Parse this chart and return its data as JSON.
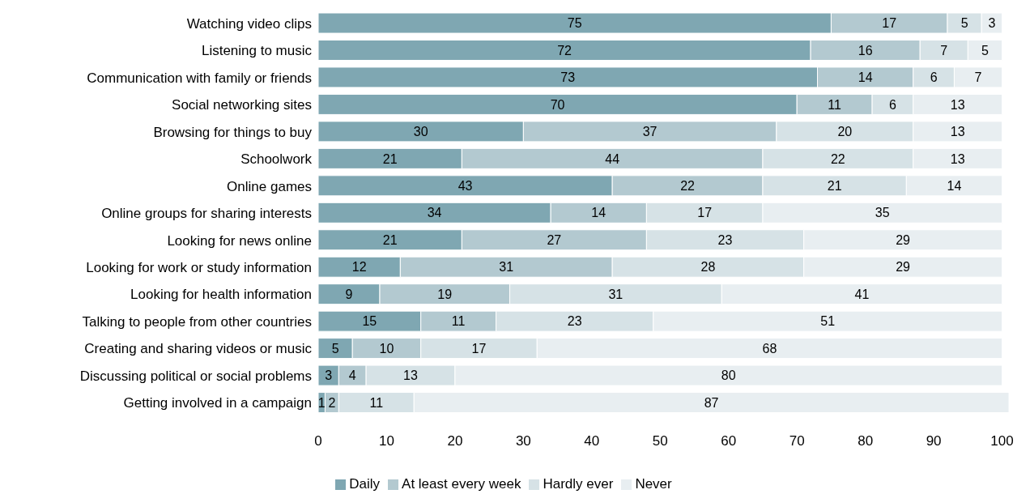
{
  "chart_data": {
    "type": "bar",
    "orientation": "horizontal",
    "stacked": true,
    "legend": "bottom",
    "categories": [
      "Watching video clips",
      "Listening to music",
      "Communication with family or friends",
      "Social networking sites",
      "Browsing for things to buy",
      "Schoolwork",
      "Online games",
      "Online groups for sharing interests",
      "Looking for news online",
      "Looking for work or study information",
      "Looking for health information",
      "Talking to people from other countries",
      "Creating and sharing videos or music",
      "Discussing political or social problems",
      "Getting involved in a campaign"
    ],
    "series": [
      {
        "name": "Daily",
        "color": "#7fa7b2",
        "values": [
          75,
          72,
          73,
          70,
          30,
          21,
          43,
          34,
          21,
          12,
          9,
          15,
          5,
          3,
          1
        ],
        "value_labels": [
          "75",
          "72",
          "73",
          "70",
          "30",
          "21",
          "43",
          "34",
          "21",
          "12",
          "9",
          "15",
          "5",
          "3",
          "1"
        ]
      },
      {
        "name": "At least every week",
        "color": "#b3c9d0",
        "values": [
          17,
          16,
          14,
          11,
          37,
          44,
          22,
          14,
          27,
          31,
          19,
          11,
          10,
          4,
          2
        ],
        "value_labels": [
          "17",
          "16",
          "14",
          "11",
          "37",
          "44",
          "22",
          "14",
          "27",
          "31",
          "19",
          "11",
          "10",
          "4",
          "2"
        ]
      },
      {
        "name": "Hardly ever",
        "color": "#d6e2e6",
        "values": [
          5,
          7,
          6,
          6,
          20,
          22,
          21,
          17,
          23,
          28,
          31,
          23,
          17,
          13,
          11
        ],
        "value_labels": [
          "5",
          "7",
          "6",
          "6",
          "20",
          "22",
          "21",
          "17",
          "23",
          "28",
          "31",
          "23",
          "17",
          "13",
          "11"
        ]
      },
      {
        "name": "Never",
        "color": "#e8eef1",
        "values": [
          3,
          5,
          7,
          13,
          13,
          13,
          14,
          35,
          29,
          29,
          41,
          51,
          68,
          80,
          87
        ],
        "value_labels": [
          "3",
          "5",
          "7",
          "13",
          "13",
          "13",
          "14",
          "35",
          "29",
          "29",
          "41",
          "51",
          "68",
          "80",
          "87"
        ]
      }
    ],
    "xlim": [
      0,
      101
    ],
    "xticks": [
      0,
      10,
      20,
      30,
      40,
      50,
      60,
      70,
      80,
      90,
      100
    ]
  }
}
